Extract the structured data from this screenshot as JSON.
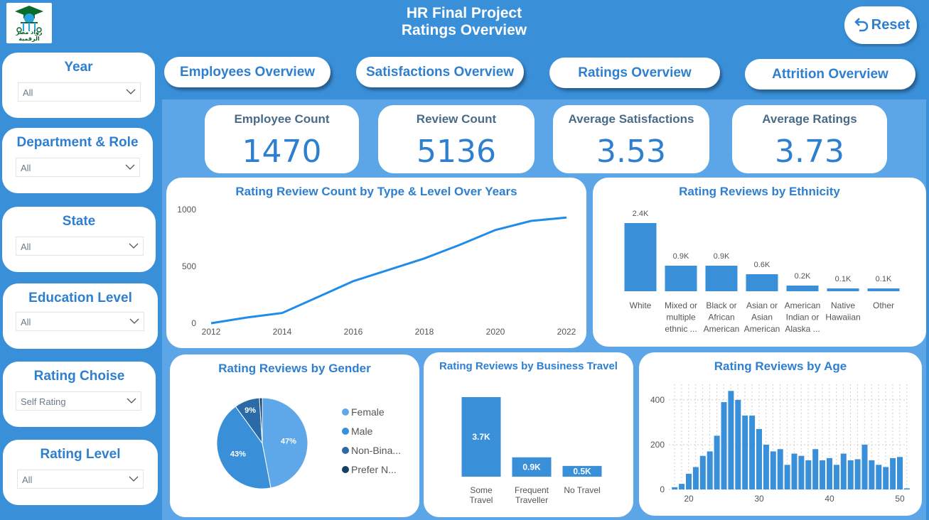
{
  "header": {
    "logo_caption": "رواد مصر الرقمية",
    "title_line1": "HR Final Project",
    "title_line2": "Ratings Overview",
    "reset_label": "Reset"
  },
  "slicers": [
    {
      "label": "Year",
      "value": "All"
    },
    {
      "label": "Department & Role",
      "value": "All"
    },
    {
      "label": "State",
      "value": "All"
    },
    {
      "label": "Education Level",
      "value": "All"
    },
    {
      "label": "Rating Choise",
      "value": "Self Rating"
    },
    {
      "label": "Rating Level",
      "value": "All"
    }
  ],
  "nav": [
    "Employees Overview",
    "Satisfactions Overview",
    "Ratings Overview",
    "Attrition Overview"
  ],
  "kpis": [
    {
      "label": "Employee Count",
      "value": "1470"
    },
    {
      "label": "Review Count",
      "value": "5136"
    },
    {
      "label": "Average Satisfactions",
      "value": "3.53"
    },
    {
      "label": "Average Ratings",
      "value": "3.73"
    }
  ],
  "colors": {
    "accent": "#2f7fd0",
    "bar": "#3a8fd9",
    "line": "#1f8ceb",
    "bg": "#3a8fd9"
  },
  "chart_data": [
    {
      "type": "line",
      "title": "Rating Review Count by Type & Level Over Years",
      "x": [
        2012,
        2013,
        2014,
        2015,
        2016,
        2017,
        2018,
        2019,
        2020,
        2021,
        2022
      ],
      "series": [
        {
          "values": [
            0,
            50,
            90,
            230,
            370,
            470,
            570,
            690,
            820,
            900,
            930
          ]
        }
      ],
      "xticks": [
        "2012",
        "2014",
        "2016",
        "2018",
        "2020",
        "2022"
      ],
      "yticks": [
        "0",
        "500",
        "1000"
      ],
      "ylim": [
        0,
        1000
      ]
    },
    {
      "type": "bar",
      "title": "Rating Reviews by Ethnicity",
      "categories": [
        [
          "White"
        ],
        [
          "Mixed or",
          "multiple",
          "ethnic ..."
        ],
        [
          "Black or",
          "African",
          "American"
        ],
        [
          "Asian or",
          "Asian",
          "American"
        ],
        [
          "American",
          "Indian or",
          "Alaska ..."
        ],
        [
          "Native",
          "Hawaiian"
        ],
        [
          "Other"
        ]
      ],
      "values": [
        2400,
        900,
        900,
        600,
        200,
        100,
        100
      ],
      "labels": [
        "2.4K",
        "0.9K",
        "0.9K",
        "0.6K",
        "0.2K",
        "0.1K",
        "0.1K"
      ]
    },
    {
      "type": "pie",
      "title": "Rating Reviews by Gender",
      "slices": [
        {
          "name": "Female",
          "value": 47,
          "label": "47%",
          "color": "#5ea7e8"
        },
        {
          "name": "Male",
          "value": 43,
          "label": "43%",
          "color": "#3a8fd9"
        },
        {
          "name": "Non-Bina...",
          "value": 9,
          "label": "9%",
          "color": "#2a6aa6"
        },
        {
          "name": "Prefer N...",
          "value": 1,
          "label": "",
          "color": "#173f66"
        }
      ]
    },
    {
      "type": "bar",
      "title": "Rating Reviews by Business Travel",
      "categories": [
        [
          "Some",
          "Travel"
        ],
        [
          "Frequent",
          "Traveller"
        ],
        [
          "No Travel"
        ]
      ],
      "values": [
        3700,
        900,
        500
      ],
      "labels": [
        "3.7K",
        "0.9K",
        "0.5K"
      ]
    },
    {
      "type": "bar",
      "title": "Rating Reviews by Age",
      "x": [
        18,
        19,
        20,
        21,
        22,
        23,
        24,
        25,
        26,
        27,
        28,
        29,
        30,
        31,
        32,
        33,
        34,
        35,
        36,
        37,
        38,
        39,
        40,
        41,
        42,
        43,
        44,
        45,
        46,
        47,
        48,
        49,
        50,
        51
      ],
      "values": [
        10,
        25,
        70,
        100,
        150,
        170,
        240,
        390,
        440,
        400,
        330,
        330,
        270,
        200,
        170,
        180,
        110,
        160,
        150,
        130,
        180,
        130,
        140,
        110,
        160,
        130,
        135,
        200,
        130,
        110,
        100,
        140,
        145,
        5
      ],
      "xticks": [
        "20",
        "30",
        "40",
        "50"
      ],
      "yticks": [
        "0",
        "200",
        "400"
      ],
      "ylim": [
        0,
        460
      ]
    }
  ]
}
